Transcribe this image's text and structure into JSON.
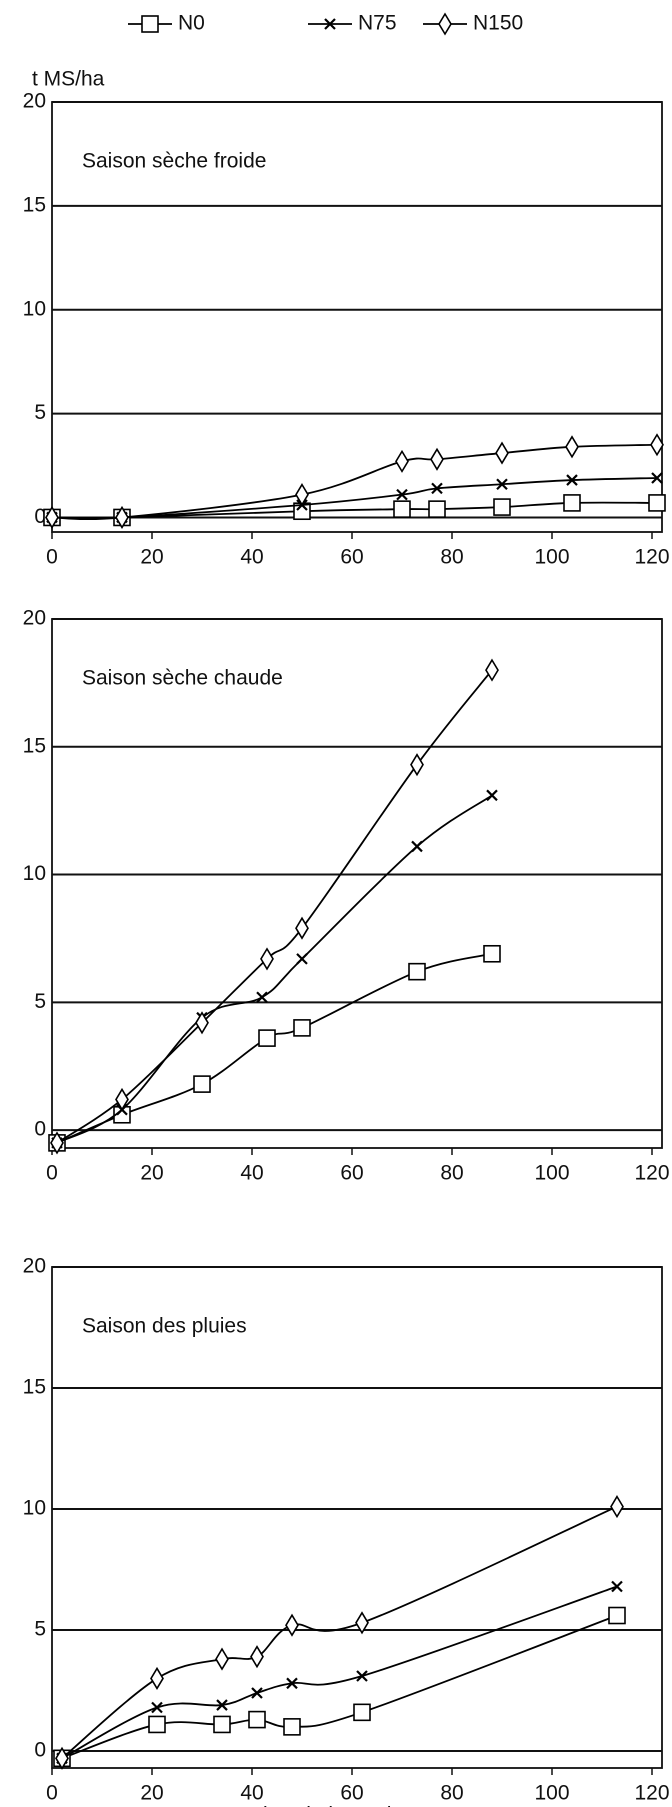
{
  "chart_data": [
    {
      "type": "line",
      "title": "Saison sèche froide",
      "ylabel": "t MS/ha",
      "xlim": [
        0,
        122
      ],
      "ylim": [
        -0.7,
        20
      ],
      "xticks": [
        0,
        20,
        40,
        60,
        80,
        100,
        120
      ],
      "yticks": [
        0,
        5,
        10,
        15,
        20
      ],
      "grid": true,
      "series": [
        {
          "name": "N0",
          "marker": "square",
          "color": "#000000",
          "x": [
            0,
            14,
            50,
            70,
            77,
            90,
            104,
            121
          ],
          "values": [
            0,
            0,
            0.3,
            0.4,
            0.4,
            0.5,
            0.7,
            0.7
          ]
        },
        {
          "name": "N75",
          "marker": "x",
          "color": "#000000",
          "x": [
            0,
            14,
            50,
            70,
            77,
            90,
            104,
            121
          ],
          "values": [
            0,
            0,
            0.6,
            1.1,
            1.4,
            1.6,
            1.8,
            1.9
          ]
        },
        {
          "name": "N150",
          "marker": "diamond",
          "color": "#000000",
          "x": [
            0,
            14,
            50,
            70,
            77,
            90,
            104,
            121
          ],
          "values": [
            0,
            0,
            1.1,
            2.7,
            2.8,
            3.1,
            3.4,
            3.5
          ]
        }
      ]
    },
    {
      "type": "line",
      "title": "Saison sèche chaude",
      "xlim": [
        0,
        122
      ],
      "ylim": [
        -0.7,
        20
      ],
      "xticks": [
        0,
        20,
        40,
        60,
        80,
        100,
        120
      ],
      "yticks": [
        0,
        5,
        10,
        15,
        20
      ],
      "grid": true,
      "series": [
        {
          "marker": "square",
          "color": "#000000",
          "x": [
            1,
            14,
            30,
            43,
            50,
            73,
            88
          ],
          "values": [
            -0.5,
            0.6,
            1.8,
            3.6,
            4.0,
            6.2,
            6.9
          ]
        },
        {
          "marker": "x",
          "color": "#000000",
          "x": [
            1,
            14,
            30,
            42,
            50,
            73,
            88
          ],
          "values": [
            -0.5,
            0.8,
            4.4,
            5.2,
            6.7,
            11.1,
            13.1
          ]
        },
        {
          "marker": "diamond",
          "color": "#000000",
          "x": [
            1,
            14,
            30,
            43,
            50,
            73,
            88
          ],
          "values": [
            -0.5,
            1.2,
            4.2,
            6.7,
            7.9,
            14.3,
            18.0
          ]
        }
      ]
    },
    {
      "type": "line",
      "title": "Saison des pluies",
      "xlabel": "Nombre de jours de repousse",
      "xlim": [
        0,
        122
      ],
      "ylim": [
        -0.7,
        20
      ],
      "xticks": [
        0,
        20,
        40,
        60,
        80,
        100,
        120
      ],
      "yticks": [
        0,
        5,
        10,
        15,
        20
      ],
      "grid": true,
      "series": [
        {
          "marker": "square",
          "color": "#000000",
          "x": [
            2,
            21,
            34,
            41,
            48,
            62,
            113
          ],
          "values": [
            -0.3,
            1.1,
            1.1,
            1.3,
            1.0,
            1.6,
            5.6
          ]
        },
        {
          "marker": "x",
          "color": "#000000",
          "x": [
            2,
            21,
            34,
            41,
            48,
            62,
            113
          ],
          "values": [
            -0.3,
            1.8,
            1.9,
            2.4,
            2.8,
            3.1,
            6.8
          ]
        },
        {
          "marker": "diamond",
          "color": "#000000",
          "x": [
            2,
            21,
            34,
            41,
            48,
            62,
            113
          ],
          "values": [
            -0.3,
            3.0,
            3.8,
            3.9,
            5.2,
            5.3,
            10.1
          ]
        }
      ]
    }
  ]
}
